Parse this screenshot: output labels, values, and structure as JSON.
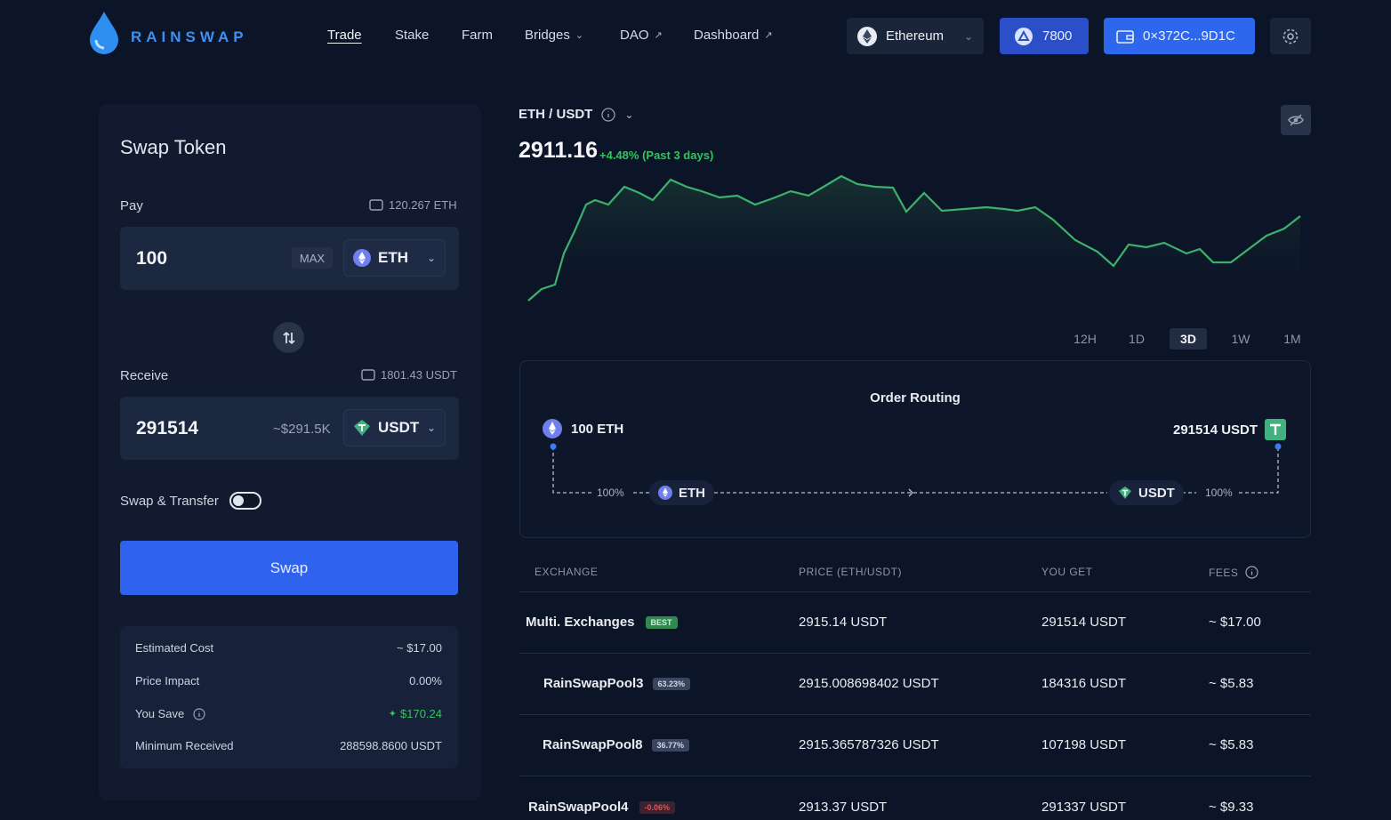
{
  "header": {
    "brand": "RAINSWAP",
    "nav": [
      {
        "label": "Trade"
      },
      {
        "label": "Stake"
      },
      {
        "label": "Farm"
      },
      {
        "label": "Bridges"
      },
      {
        "label": "DAO"
      },
      {
        "label": "Dashboard"
      }
    ],
    "network": "Ethereum",
    "points": "7800",
    "wallet": "0×372C...9D1C"
  },
  "swap": {
    "title": "Swap Token",
    "pay_label": "Pay",
    "pay_balance": "120.267 ETH",
    "pay_amount": "100",
    "max_label": "MAX",
    "pay_token": "ETH",
    "receive_label": "Receive",
    "receive_balance": "1801.43 USDT",
    "receive_amount": "291514",
    "receive_usd": "~$291.5K",
    "receive_token": "USDT",
    "transfer_label": "Swap & Transfer",
    "transfer_on": false,
    "button": "Swap",
    "summary": [
      {
        "label": "Estimated Cost",
        "value": "~ $17.00"
      },
      {
        "label": "Price Impact",
        "value": "0.00%"
      },
      {
        "label": "You Save",
        "value": "$170.24"
      },
      {
        "label": "Minimum Received",
        "value": "288598.8600 USDT"
      }
    ]
  },
  "market": {
    "pair": "ETH / USDT",
    "price": "2911.16",
    "change": "+4.48% (Past 3 days)",
    "timeframes": [
      "12H",
      "1D",
      "3D",
      "1W",
      "1M"
    ],
    "active_timeframe": "3D"
  },
  "routing": {
    "title": "Order Routing",
    "from": "100 ETH",
    "to": "291514 USDT",
    "from_pct": "100%",
    "to_pct": "100%",
    "from_token": "ETH",
    "to_token": "USDT"
  },
  "table": {
    "headers": [
      "EXCHANGE",
      "PRICE (ETH/USDT)",
      "YOU GET",
      "FEES"
    ],
    "rows": [
      {
        "exchange": "Multi. Exchanges",
        "badge": "BEST",
        "price": "2915.14 USDT",
        "get": "291514 USDT",
        "fee": "~ $17.00"
      },
      {
        "exchange": "RainSwapPool3",
        "badge": "63.23%",
        "price": "2915.008698402 USDT",
        "get": "184316 USDT",
        "fee": "~ $5.83"
      },
      {
        "exchange": "RainSwapPool8",
        "badge": "36.77%",
        "price": "2915.365787326 USDT",
        "get": "107198 USDT",
        "fee": "~ $5.83"
      },
      {
        "exchange": "RainSwapPool4",
        "badge": "-0.06%",
        "price": "2913.37 USDT",
        "get": "291337 USDT",
        "fee": "~ $9.33"
      }
    ]
  },
  "colors": {
    "accent": "#2f63ee",
    "up": "#35c25f",
    "down": "#d23c3c",
    "bg": "#0c1427"
  }
}
